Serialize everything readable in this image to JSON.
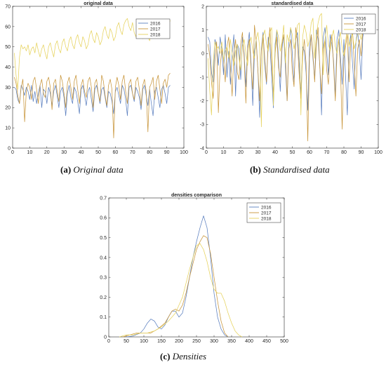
{
  "colors": {
    "2016": "#5b7fbf",
    "2017": "#c8953a",
    "2018": "#e6d25c"
  },
  "panels": [
    {
      "id": "a",
      "caption_label": "(a)",
      "caption_text": "Original data",
      "chart_data": {
        "type": "line",
        "title": "original data",
        "xlabel": "",
        "ylabel": "",
        "xlim": [
          0,
          100
        ],
        "ylim": [
          0,
          70
        ],
        "xticks": [
          0,
          10,
          20,
          30,
          40,
          50,
          60,
          70,
          80,
          90,
          100
        ],
        "yticks": [
          0,
          10,
          20,
          30,
          40,
          50,
          60,
          70
        ],
        "grid": false,
        "legend": "top-right",
        "x_start": 1,
        "series": [
          {
            "name": "2016",
            "color": "#5b7fbf",
            "values": [
              30,
              29,
              24,
              22,
              31,
              29,
              26,
              30,
              28,
              24,
              31,
              23,
              28,
              22,
              27,
              31,
              20,
              29,
              28,
              22,
              30,
              27,
              21,
              28,
              31,
              26,
              20,
              28,
              30,
              25,
              16,
              27,
              31,
              25,
              22,
              30,
              28,
              23,
              17,
              29,
              31,
              26,
              21,
              28,
              30,
              24,
              18,
              29,
              31,
              27,
              22,
              29,
              30,
              25,
              20,
              28,
              27,
              23,
              17,
              28,
              30,
              26,
              22,
              31,
              29,
              24,
              16,
              30,
              31,
              27,
              23,
              30,
              28,
              25,
              19,
              29,
              31,
              26,
              21,
              29,
              22,
              16,
              28,
              30,
              25,
              20,
              29,
              31,
              27,
              22,
              30,
              31
            ]
          },
          {
            "name": "2017",
            "color": "#c8953a",
            "values": [
              35,
              32,
              26,
              22,
              30,
              34,
              13,
              28,
              32,
              30,
              24,
              33,
              35,
              29,
              22,
              31,
              34,
              27,
              25,
              33,
              35,
              30,
              19,
              32,
              34,
              28,
              23,
              36,
              33,
              27,
              20,
              32,
              35,
              30,
              24,
              33,
              36,
              29,
              22,
              31,
              34,
              28,
              25,
              33,
              35,
              30,
              20,
              32,
              34,
              27,
              23,
              36,
              33,
              26,
              21,
              31,
              34,
              29,
              5,
              30,
              35,
              31,
              24,
              33,
              36,
              28,
              22,
              32,
              34,
              27,
              24,
              33,
              35,
              29,
              21,
              31,
              34,
              28,
              8,
              30,
              32,
              35,
              24,
              33,
              36,
              29,
              22,
              32,
              34,
              30,
              36,
              37
            ]
          },
          {
            "name": "2018",
            "color": "#e6d25c",
            "values": [
              47,
              36,
              29,
              45,
              51,
              49,
              50,
              48,
              51,
              46,
              49,
              50,
              47,
              52,
              48,
              45,
              49,
              51,
              47,
              44,
              50,
              52,
              48,
              45,
              51,
              53,
              49,
              47,
              52,
              54,
              50,
              48,
              53,
              55,
              51,
              49,
              54,
              56,
              52,
              50,
              55,
              53,
              49,
              51,
              56,
              58,
              54,
              52,
              57,
              55,
              51,
              53,
              58,
              60,
              56,
              54,
              59,
              57,
              53,
              55,
              60,
              62,
              58,
              56,
              61,
              63,
              64,
              60,
              58,
              62,
              57,
              55,
              59,
              61,
              56,
              54,
              58,
              60,
              55,
              53,
              57,
              62,
              56,
              58,
              60,
              55,
              57,
              59,
              60,
              58,
              61,
              63
            ]
          }
        ]
      }
    },
    {
      "id": "b",
      "caption_label": "(b)",
      "caption_text": "Standardised data",
      "chart_data": {
        "type": "line",
        "title": "standardised data",
        "xlabel": "",
        "ylabel": "",
        "xlim": [
          0,
          100
        ],
        "ylim": [
          -4,
          2
        ],
        "xticks": [
          0,
          10,
          20,
          30,
          40,
          50,
          60,
          70,
          80,
          90,
          100
        ],
        "yticks": [
          -4,
          -3,
          -2,
          -1,
          0,
          1,
          2
        ],
        "grid": false,
        "legend": "top-right",
        "x_start": 1,
        "series": [
          {
            "name": "2016",
            "color": "#5b7fbf",
            "values": [
              0.7,
              0.5,
              -0.8,
              -1.2,
              0.6,
              0.3,
              -0.5,
              0.7,
              0.2,
              -0.9,
              0.8,
              -1.0,
              0.1,
              -1.3,
              0.0,
              0.8,
              -1.8,
              0.4,
              0.2,
              -1.1,
              0.7,
              0.0,
              -1.4,
              0.3,
              0.9,
              -0.4,
              -2.2,
              0.1,
              0.6,
              -0.7,
              -2.7,
              0.2,
              0.9,
              -0.5,
              -1.3,
              0.7,
              0.3,
              -0.9,
              -2.3,
              0.4,
              1.0,
              -0.3,
              -1.6,
              0.2,
              0.8,
              -0.6,
              -2.0,
              0.5,
              1.1,
              0.0,
              -1.2,
              0.6,
              0.9,
              -0.4,
              -1.7,
              0.3,
              0.1,
              -0.8,
              -2.4,
              0.3,
              0.8,
              -0.2,
              -1.1,
              1.0,
              0.6,
              -0.5,
              -2.6,
              0.7,
              1.1,
              0.1,
              -0.9,
              0.8,
              0.4,
              -0.3,
              -1.8,
              0.6,
              1.0,
              -0.1,
              -1.3,
              0.6,
              -1.0,
              -2.6,
              0.3,
              0.8,
              -0.4,
              -1.5,
              0.5,
              1.0,
              0.1,
              -1.1,
              0.7,
              1.1
            ]
          },
          {
            "name": "2017",
            "color": "#c8953a",
            "values": [
              0.4,
              -0.1,
              -1.2,
              -1.9,
              -0.3,
              0.5,
              -2.5,
              -0.6,
              0.2,
              -0.2,
              -1.2,
              0.3,
              0.7,
              -0.5,
              -1.8,
              0.0,
              0.6,
              -0.8,
              -1.1,
              0.4,
              0.9,
              -0.2,
              -2.1,
              0.2,
              0.6,
              -0.6,
              -1.5,
              1.2,
              0.5,
              -0.7,
              -2.0,
              0.1,
              0.8,
              -0.2,
              -1.2,
              0.4,
              1.1,
              -0.4,
              -1.8,
              0.0,
              0.7,
              -0.6,
              -1.0,
              0.4,
              0.8,
              -0.1,
              -2.0,
              0.2,
              0.6,
              -0.8,
              -1.4,
              1.1,
              0.5,
              -0.9,
              -1.9,
              -0.1,
              0.6,
              -0.4,
              -3.7,
              -0.2,
              0.8,
              0.0,
              -1.2,
              0.4,
              1.1,
              -0.6,
              -1.7,
              0.2,
              0.6,
              -0.7,
              -1.3,
              0.4,
              0.8,
              -0.5,
              -2.0,
              0.0,
              0.6,
              -0.6,
              -3.2,
              -0.2,
              0.3,
              0.8,
              -1.2,
              0.4,
              1.0,
              -0.4,
              -1.8,
              0.2,
              0.6,
              -0.1,
              1.0,
              1.2
            ]
          },
          {
            "name": "2018",
            "color": "#e6d25c",
            "values": [
              -0.2,
              -1.6,
              -2.6,
              -0.4,
              0.5,
              0.2,
              0.3,
              0.0,
              0.5,
              -0.3,
              0.1,
              0.3,
              -0.2,
              0.6,
              0.0,
              -0.5,
              0.1,
              0.4,
              -0.2,
              -0.7,
              0.3,
              0.6,
              0.0,
              -0.5,
              0.4,
              0.7,
              0.1,
              -0.2,
              0.6,
              0.9,
              0.3,
              -3.1,
              0.7,
              1.0,
              0.4,
              0.1,
              0.9,
              1.1,
              -2.2,
              0.2,
              1.0,
              0.7,
              0.1,
              0.5,
              1.2,
              -0.4,
              0.8,
              0.5,
              1.1,
              0.8,
              0.2,
              0.6,
              1.2,
              1.3,
              -2.6,
              0.7,
              1.2,
              0.9,
              0.3,
              0.6,
              1.3,
              1.5,
              -0.2,
              0.8,
              1.3,
              1.6,
              1.7,
              -0.9,
              0.6,
              1.2,
              0.4,
              0.1,
              0.7,
              1.0,
              0.3,
              0.0,
              0.6,
              0.9,
              0.2,
              -0.1,
              0.5,
              1.2,
              0.3,
              0.6,
              0.9,
              0.2,
              0.5,
              0.8,
              0.9,
              0.6,
              1.0,
              1.2
            ]
          }
        ]
      }
    },
    {
      "id": "c",
      "caption_label": "(c)",
      "caption_text": "Densities",
      "chart_data": {
        "type": "line",
        "title": "densities comparison",
        "xlabel": "",
        "ylabel": "",
        "xlim": [
          0,
          500
        ],
        "ylim": [
          0,
          0.7
        ],
        "xticks": [
          0,
          50,
          100,
          150,
          200,
          250,
          300,
          350,
          400,
          450,
          500
        ],
        "yticks": [
          0,
          0.1,
          0.2,
          0.3,
          0.4,
          0.5,
          0.6,
          0.7
        ],
        "grid": false,
        "legend": "top-right",
        "series": [
          {
            "name": "2016",
            "color": "#5b7fbf",
            "x": [
              50,
              70,
              90,
              100,
              110,
              120,
              130,
              140,
              150,
              160,
              170,
              180,
              190,
              200,
              210,
              220,
              230,
              240,
              250,
              260,
              270,
              280,
              290,
              300,
              310,
              320,
              330,
              340
            ],
            "values": [
              0.0,
              0.005,
              0.02,
              0.04,
              0.07,
              0.09,
              0.08,
              0.05,
              0.04,
              0.06,
              0.1,
              0.13,
              0.13,
              0.1,
              0.12,
              0.2,
              0.3,
              0.4,
              0.48,
              0.55,
              0.61,
              0.55,
              0.4,
              0.22,
              0.1,
              0.04,
              0.01,
              0.0
            ]
          },
          {
            "name": "2017",
            "color": "#c8953a",
            "x": [
              40,
              60,
              80,
              100,
              120,
              140,
              160,
              170,
              180,
              190,
              200,
              210,
              220,
              230,
              240,
              250,
              260,
              270,
              280,
              290,
              300,
              310,
              320,
              330,
              340
            ],
            "values": [
              0.0,
              0.01,
              0.02,
              0.02,
              0.02,
              0.04,
              0.07,
              0.1,
              0.13,
              0.14,
              0.13,
              0.16,
              0.22,
              0.3,
              0.37,
              0.44,
              0.48,
              0.51,
              0.5,
              0.42,
              0.3,
              0.18,
              0.08,
              0.02,
              0.0
            ]
          },
          {
            "name": "2018",
            "color": "#e6d25c",
            "x": [
              30,
              50,
              70,
              90,
              110,
              130,
              150,
              170,
              190,
              210,
              230,
              250,
              260,
              270,
              280,
              290,
              300,
              310,
              320,
              330,
              340,
              350,
              360,
              370,
              380
            ],
            "values": [
              0.0,
              0.01,
              0.01,
              0.02,
              0.02,
              0.03,
              0.05,
              0.08,
              0.12,
              0.2,
              0.34,
              0.46,
              0.47,
              0.44,
              0.38,
              0.3,
              0.24,
              0.22,
              0.22,
              0.18,
              0.12,
              0.07,
              0.03,
              0.01,
              0.0
            ]
          }
        ]
      }
    }
  ]
}
